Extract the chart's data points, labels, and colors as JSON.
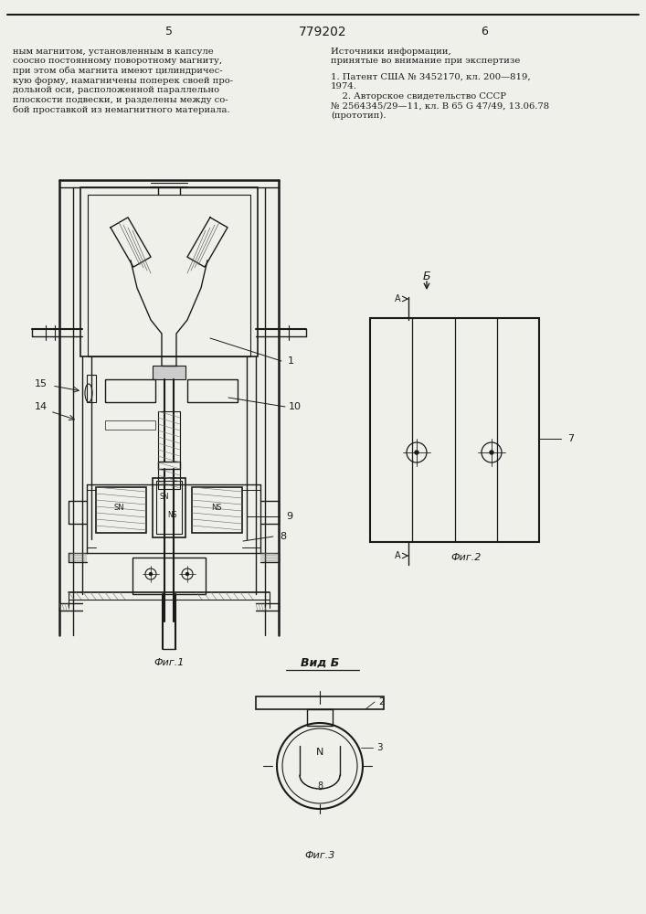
{
  "page_number_left": "5",
  "page_number_right": "6",
  "patent_number": "779202",
  "text_left": "ным магнитом, установленным в капсуле\nсоосно постоянному поворотному магниту,\nпри этом оба магнита имеют цилиндричес-\nкую форму, намагничены поперек своей про-\nдольной оси, расположенной параллельно\nплоскости подвески, и разделены между со-\nбой проставкой из немагнитного материала.",
  "text_right_title": "Источники информации,\nпринятые во внимание при экспертизе",
  "text_right_body": "1. Патент США № 3452170, кл. 200—819,\n1974.\n    2. Авторское свидетельство СССР\n№ 2564345/29—11, кл. В 65 G 47/49, 13.06.78\n(прототип).",
  "fig1_caption": "Фиг.1",
  "fig2_caption": "Фиг.2",
  "fig3_caption": "Фиг.3",
  "vid_b_label": "Вид Б",
  "bg_color": "#f0f0eb",
  "line_color": "#1a1a1a"
}
